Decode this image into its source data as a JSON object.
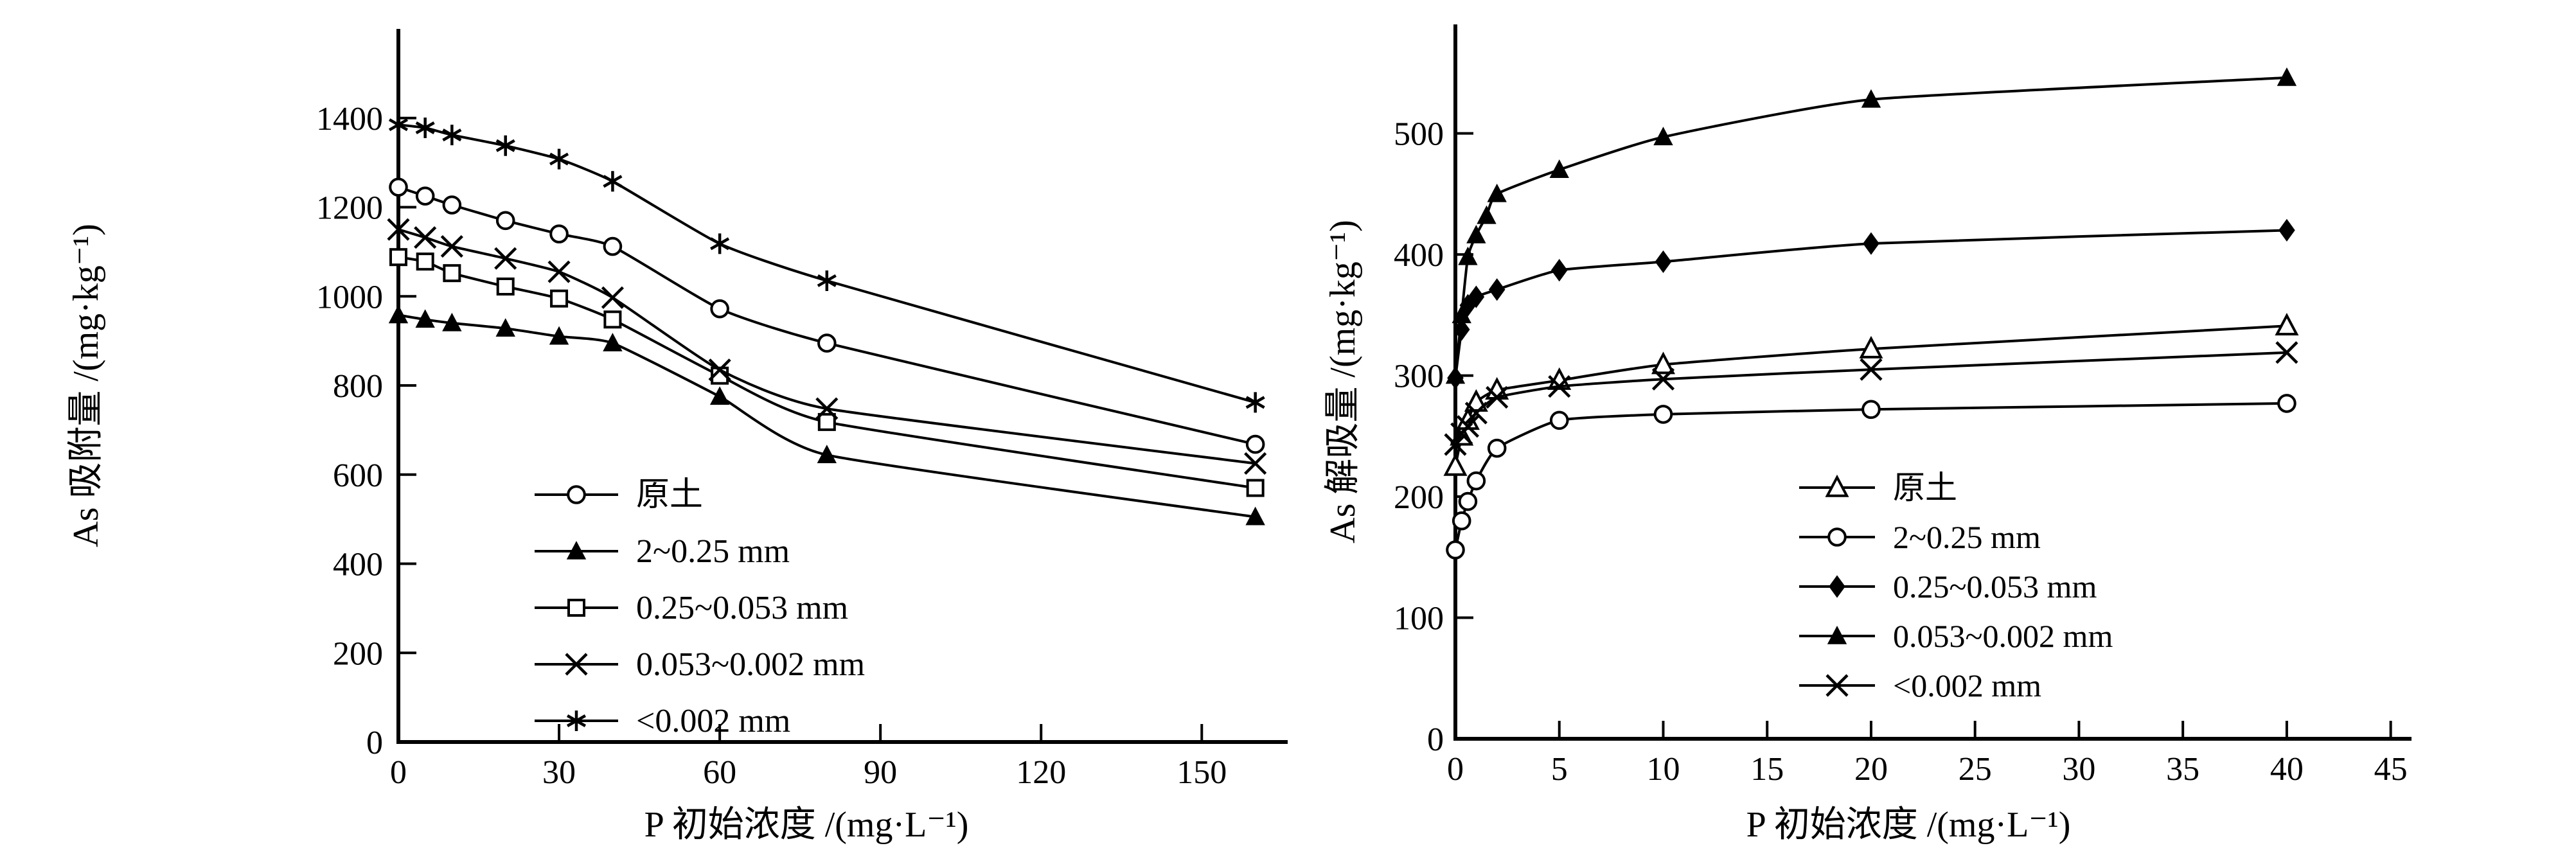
{
  "page": {
    "background": "#ffffff",
    "ink": "#000000"
  },
  "chart_data": [
    {
      "id": "as-adsorption",
      "type": "line",
      "title": "",
      "xlabel": "P 初始浓度 /(mg·L⁻¹)",
      "ylabel": "As 吸附量 /(mg·kg⁻¹)",
      "xlim": [
        0,
        167
      ],
      "ylim": [
        0,
        1600
      ],
      "x_ticks": [
        0,
        30,
        60,
        90,
        120,
        150
      ],
      "y_ticks": [
        0,
        200,
        400,
        600,
        800,
        1000,
        1200,
        1400
      ],
      "grid": false,
      "legend_position": "inside-center-left",
      "series": [
        {
          "name": "原土",
          "marker": "circle-open",
          "x": [
            0,
            5,
            10,
            20,
            30,
            40,
            60,
            80,
            160
          ],
          "y": [
            1245,
            1225,
            1205,
            1170,
            1140,
            1112,
            972,
            895,
            668
          ]
        },
        {
          "name": "2~0.25 mm",
          "marker": "triangle-filled",
          "x": [
            0,
            5,
            10,
            20,
            30,
            40,
            60,
            80,
            160
          ],
          "y": [
            958,
            948,
            940,
            928,
            910,
            895,
            775,
            644,
            505
          ]
        },
        {
          "name": "0.25~0.053 mm",
          "marker": "square-open",
          "x": [
            0,
            5,
            10,
            20,
            30,
            40,
            60,
            80,
            160
          ],
          "y": [
            1088,
            1078,
            1052,
            1022,
            995,
            948,
            822,
            718,
            570
          ]
        },
        {
          "name": "0.053~0.002 mm",
          "marker": "x-cross",
          "x": [
            0,
            5,
            10,
            20,
            30,
            40,
            60,
            80,
            160
          ],
          "y": [
            1150,
            1132,
            1112,
            1085,
            1055,
            997,
            835,
            748,
            625
          ]
        },
        {
          "name": "<0.002 mm",
          "marker": "asterisk",
          "x": [
            0,
            5,
            10,
            20,
            30,
            40,
            60,
            80,
            160
          ],
          "y": [
            1385,
            1378,
            1362,
            1338,
            1308,
            1258,
            1118,
            1035,
            762
          ]
        }
      ]
    },
    {
      "id": "as-desorption",
      "type": "line",
      "title": "",
      "xlabel": "P 初始浓度 /(mg·L⁻¹)",
      "ylabel": "As 解吸量 /(mg·kg⁻¹)",
      "xlim": [
        0,
        46
      ],
      "ylim": [
        0,
        590
      ],
      "x_ticks": [
        0,
        5,
        10,
        15,
        20,
        25,
        30,
        35,
        40,
        45
      ],
      "y_ticks": [
        0,
        100,
        200,
        300,
        400,
        500
      ],
      "grid": false,
      "legend_position": "inside-lower-middle",
      "series": [
        {
          "name": "原土",
          "marker": "triangle-open",
          "x": [
            0,
            0.3,
            0.6,
            1,
            2,
            5,
            10,
            20,
            40
          ],
          "y": [
            225,
            250,
            263,
            278,
            288,
            296,
            309,
            322,
            341
          ]
        },
        {
          "name": "2~0.25 mm",
          "marker": "circle-open",
          "x": [
            0,
            0.3,
            0.6,
            1,
            2,
            5,
            10,
            20,
            40
          ],
          "y": [
            156,
            180,
            196,
            213,
            240,
            263,
            268,
            272,
            277
          ]
        },
        {
          "name": "0.25~0.053 mm",
          "marker": "diamond-filled",
          "x": [
            0,
            0.3,
            0.6,
            1,
            2,
            5,
            10,
            20,
            40
          ],
          "y": [
            298,
            338,
            358,
            365,
            371,
            387,
            394,
            409,
            420
          ]
        },
        {
          "name": "0.053~0.002 mm",
          "marker": "triangle-filled",
          "x": [
            0,
            0.3,
            0.6,
            1,
            1.5,
            2,
            5,
            10,
            20,
            40
          ],
          "y": [
            300,
            350,
            398,
            416,
            432,
            450,
            470,
            497,
            528,
            546
          ]
        },
        {
          "name": "<0.002 mm",
          "marker": "x-cross",
          "x": [
            0,
            0.3,
            0.6,
            1,
            2,
            5,
            10,
            20,
            40
          ],
          "y": [
            243,
            252,
            258,
            269,
            282,
            291,
            297,
            305,
            319
          ]
        }
      ]
    }
  ]
}
